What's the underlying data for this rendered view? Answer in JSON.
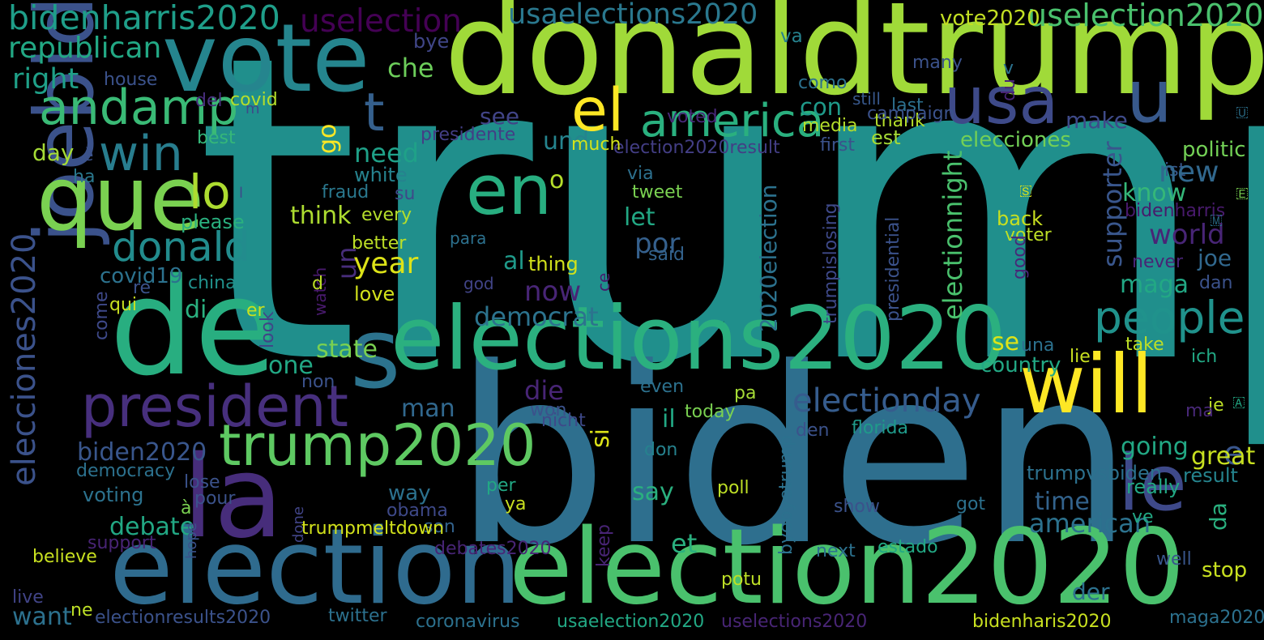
{
  "colors": {
    "background": "#000000"
  },
  "words": [
    {
      "text": "trump",
      "color": "#208f8c"
    },
    {
      "text": "biden",
      "color": "#2e6f8e"
    },
    {
      "text": "donaldtrump",
      "color": "#a0da39"
    },
    {
      "text": "vote",
      "color": "#25858e"
    },
    {
      "text": "de",
      "color": "#28ae80"
    },
    {
      "text": "election",
      "color": "#2f6b8e"
    },
    {
      "text": "election2020",
      "color": "#4ac16d"
    },
    {
      "text": "elections2020",
      "color": "#2bb07f"
    },
    {
      "text": "will",
      "color": "#fde725"
    },
    {
      "text": "la",
      "color": "#472d7b"
    },
    {
      "text": "joebiden",
      "color": "#3b528b"
    },
    {
      "text": "president",
      "color": "#472f7d"
    },
    {
      "text": "que",
      "color": "#7ad151"
    },
    {
      "text": "en",
      "color": "#28ae80"
    },
    {
      "text": "u",
      "color": "#38598c"
    },
    {
      "text": "s",
      "color": "#2c738e"
    },
    {
      "text": "usa",
      "color": "#3e4a89"
    },
    {
      "text": "le",
      "color": "#3e4989"
    },
    {
      "text": "trump2020",
      "color": "#5ec962"
    },
    {
      "text": "america",
      "color": "#2ab07f"
    },
    {
      "text": "el",
      "color": "#fde725"
    },
    {
      "text": "andamp",
      "color": "#3aba76"
    },
    {
      "text": "t",
      "color": "#35608d"
    },
    {
      "text": "win",
      "color": "#287d8e"
    },
    {
      "text": "lo",
      "color": "#addc30"
    },
    {
      "text": "donald",
      "color": "#228c8d"
    },
    {
      "text": "people",
      "color": "#20928c"
    },
    {
      "text": "electionday",
      "color": "#365c8d"
    },
    {
      "text": "bidenharris2020",
      "color": "#1f9e89"
    },
    {
      "text": "uselection",
      "color": "#440154"
    },
    {
      "text": "usaelections2020",
      "color": "#2a788e"
    },
    {
      "text": "uselection2020",
      "color": "#4ac16d"
    },
    {
      "text": "vote2020",
      "color": "#c2df23"
    },
    {
      "text": "republican",
      "color": "#22a884"
    },
    {
      "text": "right",
      "color": "#1fa088"
    },
    {
      "text": "elecciones2020",
      "color": "#3b528b"
    },
    {
      "text": "day",
      "color": "#a5db36"
    },
    {
      "text": "che",
      "color": "#6ccd5a"
    },
    {
      "text": "bye",
      "color": "#404688"
    },
    {
      "text": "como",
      "color": "#2c718e"
    },
    {
      "text": "va",
      "color": "#26828e"
    },
    {
      "text": "many",
      "color": "#3b528b"
    },
    {
      "text": "v",
      "color": "#2c728e"
    },
    {
      "text": "du",
      "color": "#482576"
    },
    {
      "text": "house",
      "color": "#3b528b"
    },
    {
      "text": "del",
      "color": "#472d7b"
    },
    {
      "text": "covid",
      "color": "#b5de2b"
    },
    {
      "text": "m",
      "color": "#3e4989"
    },
    {
      "text": "still",
      "color": "#38588c"
    },
    {
      "text": "last",
      "color": "#2d708e"
    },
    {
      "text": "thank",
      "color": "#b5de2b"
    },
    {
      "text": "voted",
      "color": "#482878"
    },
    {
      "text": "presidente",
      "color": "#433e85"
    },
    {
      "text": "campaign",
      "color": "#3b528b"
    },
    {
      "text": "media",
      "color": "#b5de2b"
    },
    {
      "text": "election2020result",
      "color": "#433e85"
    },
    {
      "text": "first",
      "color": "#3b528b"
    },
    {
      "text": "est",
      "color": "#a5db36"
    },
    {
      "text": "elecciones",
      "color": "#73d056"
    },
    {
      "text": "politic",
      "color": "#73d056"
    },
    {
      "text": "ist",
      "color": "#38588c"
    },
    {
      "text": "best",
      "color": "#35b779"
    },
    {
      "text": "go",
      "color": "#fde725"
    },
    {
      "text": "con",
      "color": "#1f9a8a"
    },
    {
      "text": "see",
      "color": "#414487"
    },
    {
      "text": "need",
      "color": "#1fa188"
    },
    {
      "text": "und",
      "color": "#25848e"
    },
    {
      "text": "make",
      "color": "#3e4a89"
    },
    {
      "text": "much",
      "color": "#d2e21b"
    },
    {
      "text": "è",
      "color": "#3b528b"
    },
    {
      "text": "ha",
      "color": "#2a788e"
    },
    {
      "text": "white",
      "color": "#26828e"
    },
    {
      "text": "su",
      "color": "#3e4989"
    },
    {
      "text": "fraud",
      "color": "#2a788e"
    },
    {
      "text": "via",
      "color": "#2d708e"
    },
    {
      "text": "tweet",
      "color": "#7ad151"
    },
    {
      "text": "o",
      "color": "#b5de2b"
    },
    {
      "text": "new",
      "color": "#31688e"
    },
    {
      "text": "know",
      "color": "#35b779"
    },
    {
      "text": "l",
      "color": "#3e4989"
    },
    {
      "text": "please",
      "color": "#2ab07f"
    },
    {
      "text": "think",
      "color": "#addc30"
    },
    {
      "text": "every",
      "color": "#b5de2b"
    },
    {
      "text": "let",
      "color": "#22a884"
    },
    {
      "text": "por",
      "color": "#35608d"
    },
    {
      "text": "world",
      "color": "#482576"
    },
    {
      "text": "joe",
      "color": "#31688e"
    },
    {
      "text": "supporter",
      "color": "#39568c"
    },
    {
      "text": "electionnight",
      "color": "#4ac16d"
    },
    {
      "text": "2020election",
      "color": "#2c728e"
    },
    {
      "text": "un",
      "color": "#472d7b"
    },
    {
      "text": "year",
      "color": "#dde318"
    },
    {
      "text": "better",
      "color": "#bddf26"
    },
    {
      "text": "back",
      "color": "#c8e020"
    },
    {
      "text": "voter",
      "color": "#bddf26"
    },
    {
      "text": "bidenharris",
      "color": "#481a6c"
    },
    {
      "text": "covid19",
      "color": "#2c728e"
    },
    {
      "text": "al",
      "color": "#1f9a8a"
    },
    {
      "text": "thing",
      "color": "#d2e21b"
    },
    {
      "text": "para",
      "color": "#2c718e"
    },
    {
      "text": "said",
      "color": "#33638d"
    },
    {
      "text": "watch",
      "color": "#481a6c"
    },
    {
      "text": "god",
      "color": "#414487"
    },
    {
      "text": "ce",
      "color": "#481c6e"
    },
    {
      "text": "good",
      "color": "#482878"
    },
    {
      "text": "never",
      "color": "#482475"
    },
    {
      "text": "dan",
      "color": "#3b528b"
    },
    {
      "text": "china",
      "color": "#21918c"
    },
    {
      "text": "d",
      "color": "#bddf26"
    },
    {
      "text": "now",
      "color": "#482576"
    },
    {
      "text": "maga",
      "color": "#22a884"
    },
    {
      "text": "trumpislosing",
      "color": "#3e4989"
    },
    {
      "text": "presidential",
      "color": "#3b528b"
    },
    {
      "text": "di",
      "color": "#2ab07f"
    },
    {
      "text": "re",
      "color": "#3b528b"
    },
    {
      "text": "qui",
      "color": "#c8e020"
    },
    {
      "text": "er",
      "color": "#c8e020"
    },
    {
      "text": "love",
      "color": "#d2e21b"
    },
    {
      "text": "democrat",
      "color": "#2c738e"
    },
    {
      "text": "come",
      "color": "#3e4989"
    },
    {
      "text": "state",
      "color": "#7ad151"
    },
    {
      "text": "one",
      "color": "#22a884"
    },
    {
      "text": "look",
      "color": "#414487"
    },
    {
      "text": "se",
      "color": "#dde318"
    },
    {
      "text": "una",
      "color": "#2c718e"
    },
    {
      "text": "take",
      "color": "#bddf26"
    },
    {
      "text": "ich",
      "color": "#22a884"
    },
    {
      "text": "non",
      "color": "#3b528b"
    },
    {
      "text": "country",
      "color": "#22a884"
    },
    {
      "text": "lie",
      "color": "#c8e020"
    },
    {
      "text": "die",
      "color": "#482576"
    },
    {
      "text": "man",
      "color": "#31688e"
    },
    {
      "text": "won",
      "color": "#3b528b"
    },
    {
      "text": "il",
      "color": "#22a884"
    },
    {
      "text": "even",
      "color": "#2c718e"
    },
    {
      "text": "today",
      "color": "#7ad151"
    },
    {
      "text": "pa",
      "color": "#a5db36"
    },
    {
      "text": "der",
      "color": "#2c718e"
    },
    {
      "text": "je",
      "color": "#bddf26"
    },
    {
      "text": "ma",
      "color": "#482878"
    },
    {
      "text": "nicht",
      "color": "#3e4989"
    },
    {
      "text": "den",
      "color": "#3b528b"
    },
    {
      "text": "florida",
      "color": "#1f9a8a"
    },
    {
      "text": "biden2020",
      "color": "#39568c"
    },
    {
      "text": "democracy",
      "color": "#2c718e"
    },
    {
      "text": "voting",
      "color": "#2c728e"
    },
    {
      "text": "e",
      "color": "#39568c"
    },
    {
      "text": "si",
      "color": "#dde318"
    },
    {
      "text": "say",
      "color": "#2ab07f"
    },
    {
      "text": "time",
      "color": "#33638d"
    },
    {
      "text": "american",
      "color": "#2c728e"
    },
    {
      "text": "going",
      "color": "#22a884"
    },
    {
      "text": "great",
      "color": "#c8e020"
    },
    {
      "text": "result",
      "color": "#25848e"
    },
    {
      "text": "trumpvsbiden",
      "color": "#2c718e"
    },
    {
      "text": "really",
      "color": "#22a884"
    },
    {
      "text": "don",
      "color": "#26828e"
    },
    {
      "text": "lose",
      "color": "#3b528b"
    },
    {
      "text": "pour",
      "color": "#3b528b"
    },
    {
      "text": "per",
      "color": "#22a884"
    },
    {
      "text": "poll",
      "color": "#bddf26"
    },
    {
      "text": "à",
      "color": "#7ad151"
    },
    {
      "text": "way",
      "color": "#2c718e"
    },
    {
      "text": "obama",
      "color": "#3e4989"
    },
    {
      "text": "son",
      "color": "#33638d"
    },
    {
      "text": "ya",
      "color": "#c8e020"
    },
    {
      "text": "show",
      "color": "#3b528b"
    },
    {
      "text": "got",
      "color": "#2c718e"
    },
    {
      "text": "ve",
      "color": "#22a884"
    },
    {
      "text": "debate",
      "color": "#22a884"
    },
    {
      "text": "trumpmeltdown",
      "color": "#d2e21b"
    },
    {
      "text": "da",
      "color": "#2ab07f"
    },
    {
      "text": "et",
      "color": "#2ab07f"
    },
    {
      "text": "support",
      "color": "#482475"
    },
    {
      "text": "debates2020",
      "color": "#482576"
    },
    {
      "text": "byebyetrump",
      "color": "#2c718e"
    },
    {
      "text": "next",
      "color": "#2c718e"
    },
    {
      "text": "estado",
      "color": "#22a884"
    },
    {
      "text": "stop",
      "color": "#c8e020"
    },
    {
      "text": "well",
      "color": "#39568c"
    },
    {
      "text": "believe",
      "color": "#c8e020"
    },
    {
      "text": "hope",
      "color": "#3b528b"
    },
    {
      "text": "done",
      "color": "#414487"
    },
    {
      "text": "potu",
      "color": "#bddf26"
    },
    {
      "text": "keep",
      "color": "#482475"
    },
    {
      "text": "live",
      "color": "#414487"
    },
    {
      "text": "ne",
      "color": "#bddf26"
    },
    {
      "text": "want",
      "color": "#2c718e"
    },
    {
      "text": "electionresults2020",
      "color": "#3b528b"
    },
    {
      "text": "twitter",
      "color": "#2c718e"
    },
    {
      "text": "coronavirus",
      "color": "#2c718e"
    },
    {
      "text": "usaelection2020",
      "color": "#22a884"
    },
    {
      "text": "uselections2020",
      "color": "#482575"
    },
    {
      "text": "bidenharis2020",
      "color": "#c8e020"
    },
    {
      "text": "maga2020",
      "color": "#2c718e"
    },
    {
      "text": "🇺",
      "color": "#2c718e"
    },
    {
      "text": "🇸",
      "color": "#dde318"
    },
    {
      "text": "🇲",
      "color": "#2c718e"
    },
    {
      "text": "🇦",
      "color": "#22a884"
    },
    {
      "text": "🇪",
      "color": "#7ad151"
    }
  ]
}
